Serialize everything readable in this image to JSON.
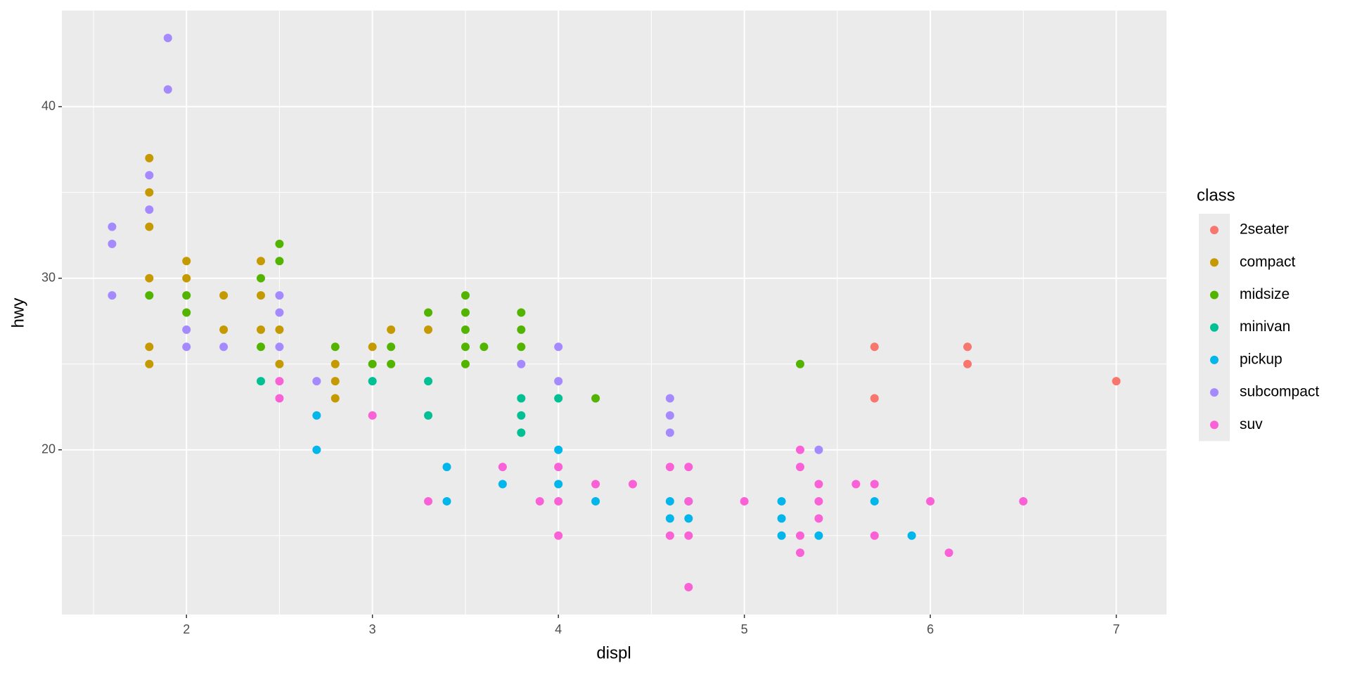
{
  "chart_data": {
    "type": "scatter",
    "x_label": "displ",
    "y_label": "hwy",
    "legend_title": "class",
    "xlim": [
      1.33,
      7.27
    ],
    "ylim": [
      10.4,
      45.6
    ],
    "xticks": [
      2,
      3,
      4,
      5,
      6,
      7
    ],
    "yticks": [
      20,
      30,
      40
    ],
    "grid": true,
    "legend": "right",
    "series": [
      {
        "name": "2seater",
        "color": "#F8766D",
        "x": [
          5.7,
          5.7,
          6.2,
          6.2,
          7.0
        ],
        "values": [
          26,
          23,
          26,
          25,
          24
        ]
      },
      {
        "name": "compact",
        "color": "#C49A00",
        "x": [
          1.8,
          1.8,
          1.8,
          1.8,
          1.8,
          1.8,
          2.0,
          2.0,
          2.2,
          2.2,
          2.4,
          2.4,
          2.4,
          2.5,
          2.5,
          2.8,
          2.8,
          2.8,
          3.0,
          3.1,
          3.3
        ],
        "values": [
          37,
          35,
          33,
          30,
          26,
          25,
          31,
          30,
          29,
          27,
          31,
          29,
          27,
          27,
          25,
          25,
          24,
          23,
          26,
          27,
          27
        ]
      },
      {
        "name": "midsize",
        "color": "#53B400",
        "x": [
          1.8,
          2.0,
          2.0,
          2.4,
          2.4,
          2.5,
          2.5,
          2.8,
          3.0,
          3.1,
          3.1,
          3.3,
          3.5,
          3.5,
          3.5,
          3.5,
          3.5,
          3.6,
          3.8,
          3.8,
          3.8,
          4.2,
          5.3
        ],
        "values": [
          29,
          29,
          28,
          30,
          26,
          32,
          31,
          26,
          25,
          26,
          25,
          28,
          29,
          28,
          27,
          26,
          25,
          26,
          28,
          27,
          26,
          23,
          25
        ]
      },
      {
        "name": "minivan",
        "color": "#00C094",
        "x": [
          2.4,
          3.0,
          3.3,
          3.3,
          3.8,
          3.8,
          3.8,
          4.0
        ],
        "values": [
          24,
          24,
          24,
          22,
          23,
          22,
          21,
          23
        ]
      },
      {
        "name": "pickup",
        "color": "#00B6EB",
        "x": [
          2.7,
          2.7,
          3.4,
          3.4,
          3.7,
          4.0,
          4.0,
          4.2,
          4.6,
          4.6,
          4.7,
          4.7,
          5.2,
          5.2,
          5.2,
          5.4,
          5.7,
          5.9
        ],
        "values": [
          22,
          20,
          19,
          17,
          18,
          20,
          18,
          17,
          17,
          16,
          17,
          16,
          17,
          16,
          15,
          15,
          17,
          15
        ]
      },
      {
        "name": "subcompact",
        "color": "#A58AFF",
        "x": [
          1.6,
          1.6,
          1.6,
          1.8,
          1.8,
          1.9,
          1.9,
          2.0,
          2.0,
          2.2,
          2.5,
          2.5,
          2.5,
          2.7,
          3.8,
          4.0,
          4.0,
          4.6,
          4.6,
          4.6,
          5.4
        ],
        "values": [
          33,
          32,
          29,
          36,
          34,
          44,
          41,
          27,
          26,
          26,
          29,
          28,
          26,
          24,
          25,
          26,
          24,
          23,
          22,
          21,
          20
        ]
      },
      {
        "name": "suv",
        "color": "#FB61D7",
        "x": [
          2.5,
          2.5,
          3.0,
          3.3,
          3.7,
          3.9,
          4.0,
          4.0,
          4.0,
          4.2,
          4.4,
          4.6,
          4.6,
          4.7,
          4.7,
          4.7,
          4.7,
          5.0,
          5.3,
          5.3,
          5.3,
          5.3,
          5.4,
          5.4,
          5.4,
          5.6,
          5.7,
          5.7,
          6.0,
          6.1,
          6.5
        ],
        "values": [
          24,
          23,
          22,
          17,
          19,
          17,
          19,
          17,
          15,
          18,
          18,
          19,
          15,
          19,
          17,
          15,
          12,
          17,
          20,
          19,
          15,
          14,
          18,
          17,
          16,
          18,
          18,
          15,
          17,
          14,
          17
        ]
      }
    ]
  }
}
